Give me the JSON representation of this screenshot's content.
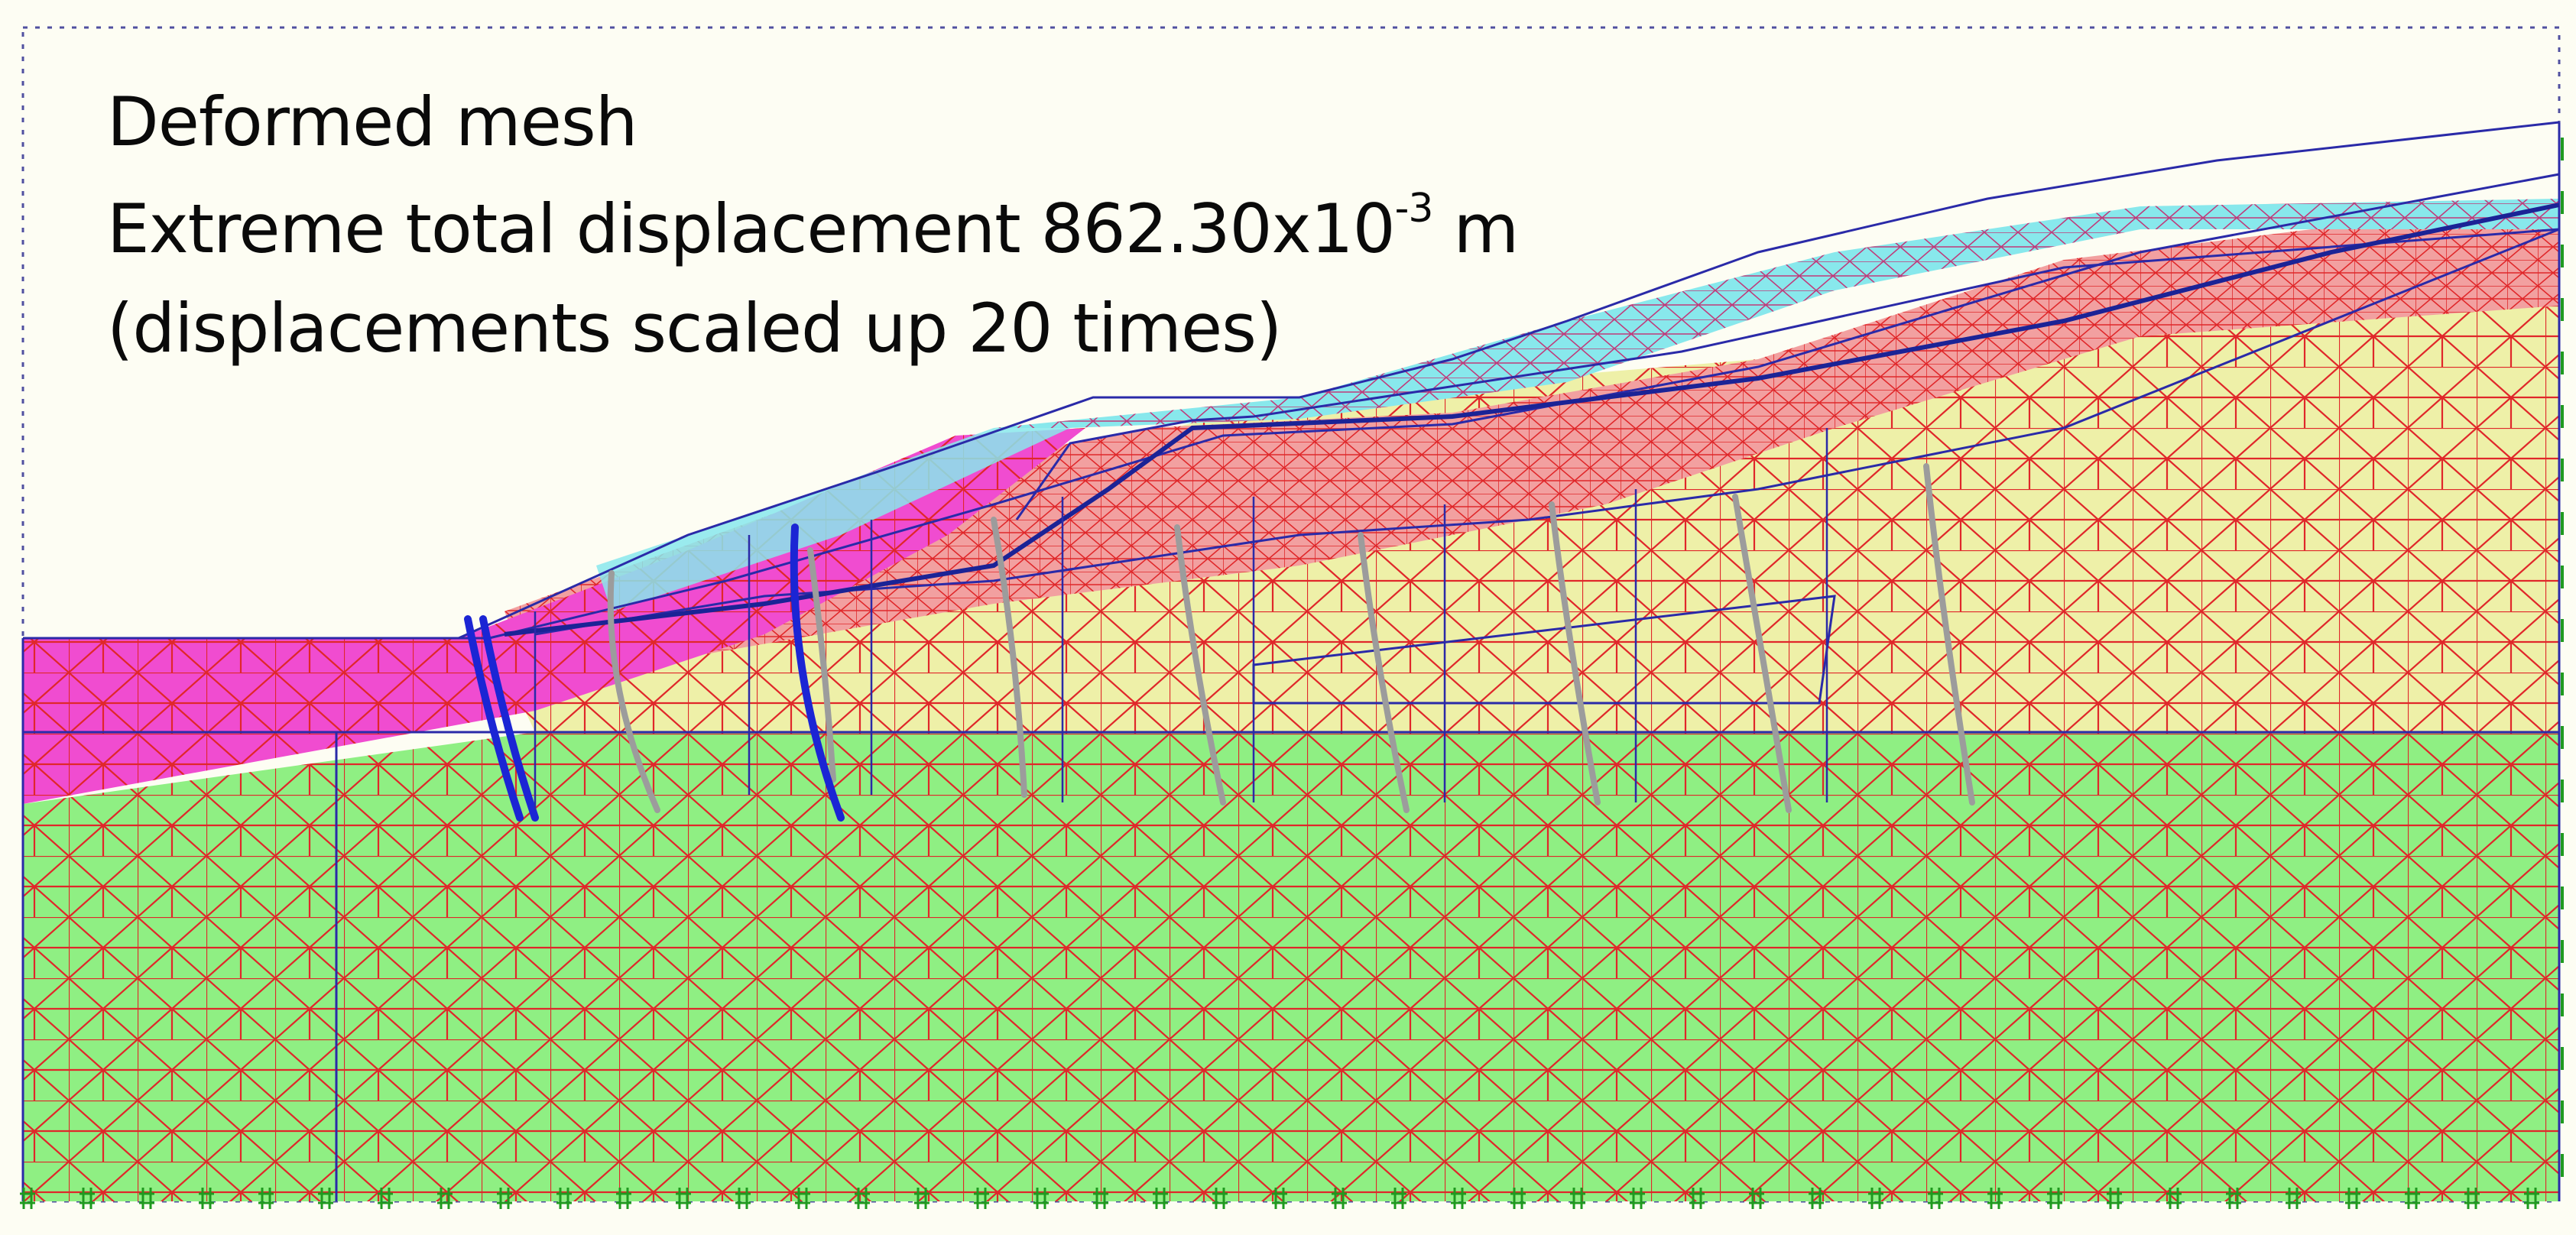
{
  "caption": {
    "title": "Deformed mesh",
    "displacement_prefix": "Extreme total displacement 862.30x10",
    "displacement_exponent": "-3",
    "displacement_unit": " m",
    "scale_note": "(displacements scaled up 20 times)"
  },
  "colors": {
    "background": "#fdfdf3",
    "bedrock": "#8fef83",
    "slide_mass": "#eef0a8",
    "shear_zone": "#f2a0a0",
    "colluvium": "#f04cd0",
    "surface_layer": "#88e8ec",
    "mesh_lines": "#e0272a",
    "geometry_lines": "#2a2aa8",
    "piles_active": "#1b25d4",
    "piles_grey": "#9c9c9c",
    "fixities": "#1f9a1f"
  },
  "icons": {
    "fixity": "fixity-hash-icon"
  }
}
